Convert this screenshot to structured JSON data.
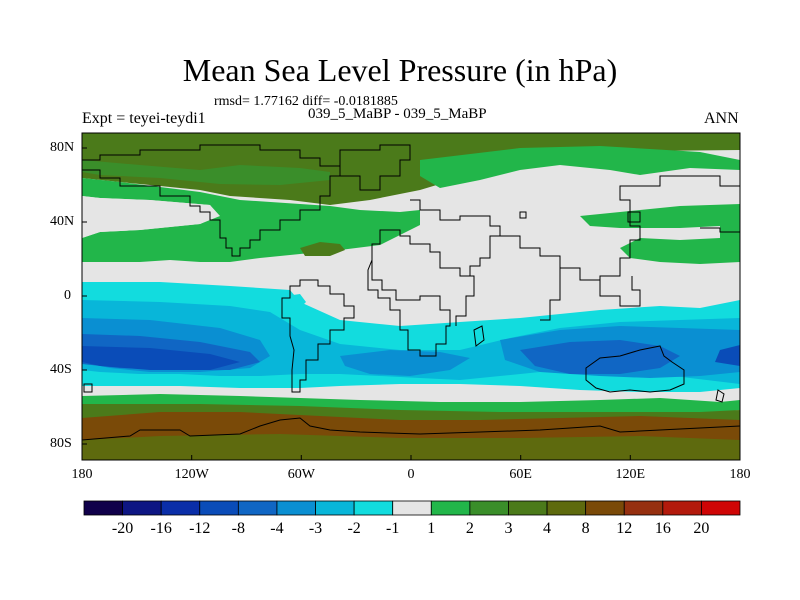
{
  "title": "Mean Sea Level Pressure (in hPa)",
  "stats_text": "rmsd= 1.77162 diff= -0.0181885",
  "experiment_text": "Expt = teyei-teydi1",
  "case_text": "039_5_MaBP - 039_5_MaBP",
  "season": "ANN",
  "lon_labels": [
    "180",
    "120W",
    "60W",
    "0",
    "60E",
    "120E",
    "180"
  ],
  "lat_labels": [
    "80N",
    "40N",
    "0",
    "40S",
    "80S"
  ],
  "colorbar": {
    "labels": [
      "-20",
      "-16",
      "-12",
      "-8",
      "-4",
      "-3",
      "-2",
      "-1",
      "1",
      "2",
      "3",
      "4",
      "8",
      "12",
      "16",
      "20"
    ],
    "colors": [
      "#10004a",
      "#0e1683",
      "#0a2ea8",
      "#0a4cb8",
      "#1066c4",
      "#0a8fd2",
      "#08b6d9",
      "#12dcde",
      "#e5e5e5",
      "#22b64a",
      "#3a8e2a",
      "#4b7a1a",
      "#5e6a0e",
      "#7a4a08",
      "#963010",
      "#b31a0c",
      "#cf0505"
    ]
  },
  "colors": {
    "land_outline": "#000000",
    "near_zero": "#e5e5e5"
  }
}
